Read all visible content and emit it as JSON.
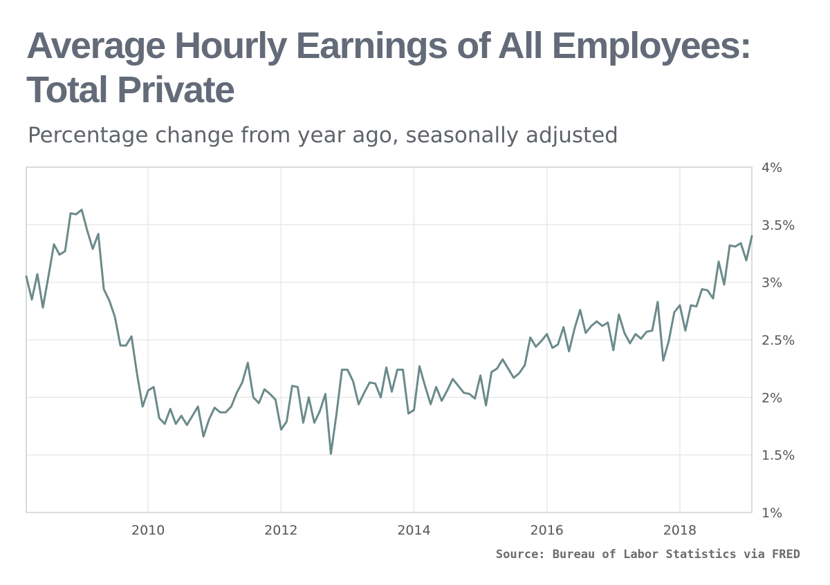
{
  "chart_data": {
    "type": "line",
    "title": "Average Hourly Earnings of All Employees: Total Private",
    "subtitle": "Percentage change from year ago, seasonally adjusted",
    "source": "Source: Bureau of Labor Statistics via FRED",
    "xlabel": "",
    "ylabel": "",
    "x_ticks": [
      "2010",
      "2012",
      "2014",
      "2016",
      "2018"
    ],
    "y_ticks": [
      "1%",
      "1.5%",
      "2%",
      "2.5%",
      "3%",
      "3.5%",
      "4%"
    ],
    "xlim": [
      "2008-03",
      "2019-02"
    ],
    "ylim": [
      1,
      4
    ],
    "grid": true,
    "y_axis_side": "right",
    "line_color": "#6b8a8a",
    "series": [
      {
        "x": [
          "2008-03",
          "2008-04",
          "2008-05",
          "2008-06",
          "2008-07",
          "2008-08",
          "2008-09",
          "2008-10",
          "2008-11",
          "2008-12",
          "2009-01",
          "2009-02",
          "2009-03",
          "2009-04",
          "2009-05",
          "2009-06",
          "2009-07",
          "2009-08",
          "2009-09",
          "2009-10",
          "2009-11",
          "2009-12",
          "2010-01",
          "2010-02",
          "2010-03",
          "2010-04",
          "2010-05",
          "2010-06",
          "2010-07",
          "2010-08",
          "2010-09",
          "2010-10",
          "2010-11",
          "2010-12",
          "2011-01",
          "2011-02",
          "2011-03",
          "2011-04",
          "2011-05",
          "2011-06",
          "2011-07",
          "2011-08",
          "2011-09",
          "2011-10",
          "2011-11",
          "2011-12",
          "2012-01",
          "2012-02",
          "2012-03",
          "2012-04",
          "2012-05",
          "2012-06",
          "2012-07",
          "2012-08",
          "2012-09",
          "2012-10",
          "2012-11",
          "2012-12",
          "2013-01",
          "2013-02",
          "2013-03",
          "2013-04",
          "2013-05",
          "2013-06",
          "2013-07",
          "2013-08",
          "2013-09",
          "2013-10",
          "2013-11",
          "2013-12",
          "2014-01",
          "2014-02",
          "2014-03",
          "2014-04",
          "2014-05",
          "2014-06",
          "2014-07",
          "2014-08",
          "2014-09",
          "2014-10",
          "2014-11",
          "2014-12",
          "2015-01",
          "2015-02",
          "2015-03",
          "2015-04",
          "2015-05",
          "2015-06",
          "2015-07",
          "2015-08",
          "2015-09",
          "2015-10",
          "2015-11",
          "2015-12",
          "2016-01",
          "2016-02",
          "2016-03",
          "2016-04",
          "2016-05",
          "2016-06",
          "2016-07",
          "2016-08",
          "2016-09",
          "2016-10",
          "2016-11",
          "2016-12",
          "2017-01",
          "2017-02",
          "2017-03",
          "2017-04",
          "2017-05",
          "2017-06",
          "2017-07",
          "2017-08",
          "2017-09",
          "2017-10",
          "2017-11",
          "2017-12",
          "2018-01",
          "2018-02",
          "2018-03",
          "2018-04",
          "2018-05",
          "2018-06",
          "2018-07",
          "2018-08",
          "2018-09",
          "2018-10",
          "2018-11",
          "2018-12",
          "2019-01",
          "2019-02"
        ],
        "values": [
          3.05,
          2.85,
          3.07,
          2.78,
          3.05,
          3.33,
          3.24,
          3.27,
          3.6,
          3.59,
          3.63,
          3.45,
          3.29,
          3.42,
          2.94,
          2.84,
          2.7,
          2.45,
          2.45,
          2.53,
          2.2,
          1.92,
          2.06,
          2.09,
          1.82,
          1.77,
          1.9,
          1.77,
          1.84,
          1.76,
          1.84,
          1.92,
          1.66,
          1.81,
          1.91,
          1.87,
          1.87,
          1.92,
          2.04,
          2.13,
          2.3,
          2.0,
          1.95,
          2.07,
          2.03,
          1.98,
          1.72,
          1.79,
          2.1,
          2.09,
          1.78,
          2.0,
          1.78,
          1.88,
          2.03,
          1.51,
          1.85,
          2.24,
          2.24,
          2.14,
          1.94,
          2.04,
          2.13,
          2.12,
          2.0,
          2.26,
          2.05,
          2.24,
          2.24,
          1.86,
          1.89,
          2.27,
          2.1,
          1.94,
          2.09,
          1.97,
          2.06,
          2.16,
          2.1,
          2.04,
          2.03,
          1.99,
          2.19,
          1.93,
          2.22,
          2.25,
          2.33,
          2.25,
          2.17,
          2.21,
          2.28,
          2.52,
          2.44,
          2.49,
          2.55,
          2.43,
          2.46,
          2.61,
          2.4,
          2.6,
          2.76,
          2.56,
          2.62,
          2.66,
          2.62,
          2.65,
          2.41,
          2.72,
          2.56,
          2.47,
          2.55,
          2.51,
          2.57,
          2.58,
          2.83,
          2.32,
          2.49,
          2.74,
          2.8,
          2.58,
          2.8,
          2.79,
          2.94,
          2.93,
          2.86,
          3.18,
          2.98,
          3.32,
          3.31,
          3.34,
          3.19,
          3.4
        ]
      }
    ]
  }
}
